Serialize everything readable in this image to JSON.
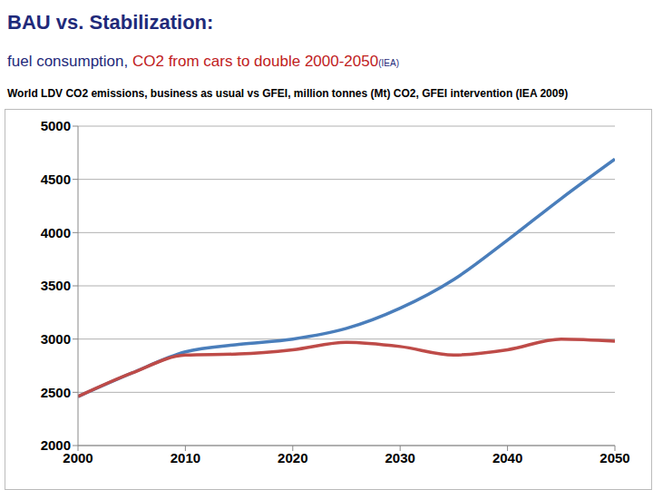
{
  "title": "BAU vs. Stabilization:",
  "subtitle": [
    "fuel consumption, ",
    "CO2 from cars to double 2000-2050",
    "(IEA)"
  ],
  "caption": "World LDV CO2 emissions, business as usual vs GFEI, million tonnes (Mt) CO2, GFEI intervention (IEA 2009)",
  "chart_data": {
    "type": "line",
    "x": [
      2000,
      2005,
      2010,
      2015,
      2020,
      2025,
      2030,
      2035,
      2040,
      2045,
      2050
    ],
    "series": [
      {
        "color": "#4a7ebb",
        "values": [
          2460,
          2680,
          2880,
          2950,
          3000,
          3100,
          3290,
          3560,
          3930,
          4320,
          4690
        ]
      },
      {
        "color": "#be4b48",
        "values": [
          2460,
          2680,
          2850,
          2860,
          2900,
          2970,
          2930,
          2850,
          2900,
          3000,
          2980
        ]
      }
    ],
    "xlim": [
      2000,
      2050
    ],
    "xticks": [
      2000,
      2010,
      2020,
      2030,
      2040,
      2050
    ],
    "ylim": [
      2000,
      5000
    ],
    "yticks": [
      2000,
      2500,
      3000,
      3500,
      4000,
      4500,
      5000
    ],
    "grid": true
  }
}
